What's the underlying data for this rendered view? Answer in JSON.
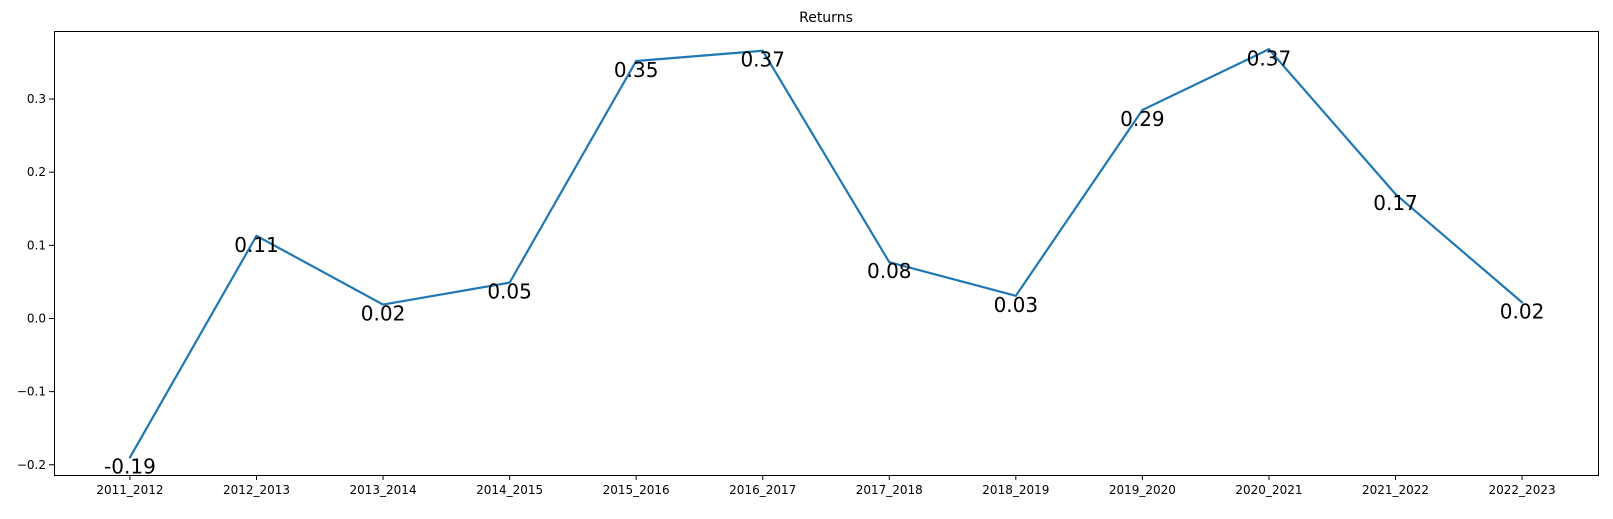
{
  "chart_data": {
    "type": "line",
    "title": "Returns",
    "xlabel": "",
    "ylabel": "",
    "categories": [
      "2011_2012",
      "2012_2013",
      "2013_2014",
      "2014_2015",
      "2015_2016",
      "2016_2017",
      "2017_2018",
      "2018_2019",
      "2019_2020",
      "2020_2021",
      "2021_2022",
      "2022_2023"
    ],
    "series": [
      {
        "values": [
          -0.19,
          0.113,
          0.019,
          0.049,
          0.352,
          0.366,
          0.077,
          0.031,
          0.285,
          0.368,
          0.17,
          0.022
        ],
        "color": "#1f77b4"
      }
    ],
    "data_labels": [
      "-0.19",
      "0.11",
      "0.02",
      "0.05",
      "0.35",
      "0.37",
      "0.08",
      "0.03",
      "0.29",
      "0.37",
      "0.17",
      "0.02"
    ],
    "yticks": [
      "−0.2",
      "−0.1",
      "0.0",
      "0.1",
      "0.2",
      "0.3"
    ],
    "ytick_values": [
      -0.2,
      -0.1,
      0.0,
      0.1,
      0.2,
      0.3
    ],
    "ylim": [
      -0.214,
      0.393
    ],
    "grid": false,
    "legend": "none"
  }
}
